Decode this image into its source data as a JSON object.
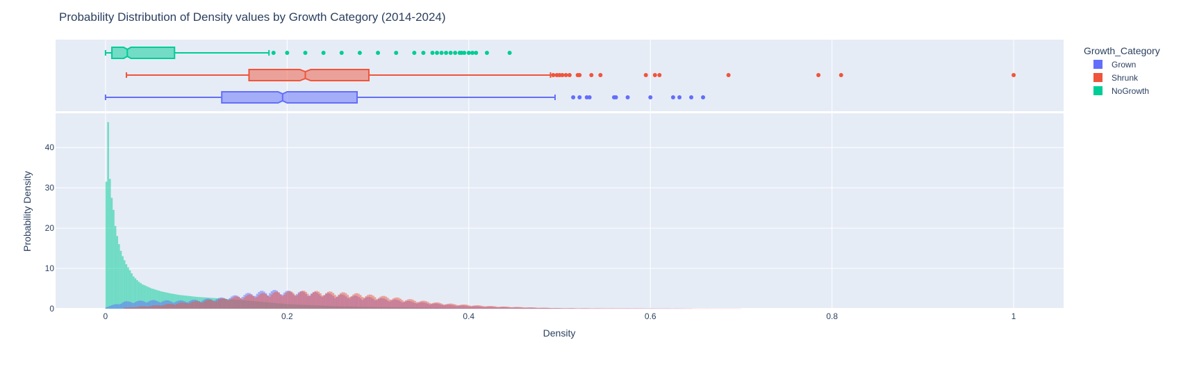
{
  "chart_data": {
    "type": "histogram",
    "title": "Probability Distribution of Density values by Growth Category (2014-2024)",
    "xlabel": "Density",
    "ylabel": "Probability Density",
    "xlim": [
      -0.055,
      1.055
    ],
    "ylim": [
      0,
      48.5
    ],
    "x_ticks": [
      0,
      0.2,
      0.4,
      0.6,
      0.8,
      1
    ],
    "x_tick_labels": [
      "0",
      "0.2",
      "0.4",
      "0.6",
      "0.8",
      "1"
    ],
    "y_ticks": [
      0,
      10,
      20,
      30,
      40
    ],
    "y_tick_labels": [
      "0",
      "10",
      "20",
      "30",
      "40"
    ],
    "grid": true,
    "legend": {
      "title": "Growth_Category",
      "position": "top-right"
    },
    "series": [
      {
        "name": "Grown",
        "color": "#636efa",
        "box": {
          "min": 0.0,
          "q1": 0.128,
          "median": 0.195,
          "q3": 0.277,
          "max": 0.495,
          "notch": [
            0.19,
            0.2
          ]
        },
        "outliers": [
          0.515,
          0.522,
          0.53,
          0.533,
          0.56,
          0.562,
          0.575,
          0.6,
          0.625,
          0.632,
          0.645,
          0.658
        ],
        "histogram_profile": [
          [
            0.0,
            0.3
          ],
          [
            0.02,
            1.5
          ],
          [
            0.05,
            1.8
          ],
          [
            0.08,
            1.7
          ],
          [
            0.1,
            1.9
          ],
          [
            0.13,
            2.4
          ],
          [
            0.16,
            3.4
          ],
          [
            0.18,
            4.0
          ],
          [
            0.2,
            3.8
          ],
          [
            0.23,
            3.5
          ],
          [
            0.26,
            3.0
          ],
          [
            0.3,
            2.3
          ],
          [
            0.34,
            1.5
          ],
          [
            0.38,
            0.8
          ],
          [
            0.42,
            0.4
          ],
          [
            0.46,
            0.2
          ],
          [
            0.5,
            0.1
          ],
          [
            0.56,
            0.05
          ],
          [
            0.62,
            0.03
          ],
          [
            0.66,
            0.0
          ]
        ]
      },
      {
        "name": "Shrunk",
        "color": "#ef553b",
        "box": {
          "min": 0.023,
          "q1": 0.158,
          "median": 0.22,
          "q3": 0.29,
          "max": 0.49,
          "notch": [
            0.214,
            0.226
          ]
        },
        "outliers": [
          0.493,
          0.497,
          0.5,
          0.503,
          0.507,
          0.511,
          0.52,
          0.522,
          0.535,
          0.545,
          0.595,
          0.605,
          0.61,
          0.686,
          0.785,
          0.81,
          1.0
        ],
        "histogram_profile": [
          [
            0.02,
            0.2
          ],
          [
            0.05,
            0.6
          ],
          [
            0.08,
            1.2
          ],
          [
            0.1,
            1.6
          ],
          [
            0.13,
            2.2
          ],
          [
            0.16,
            3.0
          ],
          [
            0.19,
            3.6
          ],
          [
            0.22,
            3.8
          ],
          [
            0.25,
            3.6
          ],
          [
            0.28,
            3.2
          ],
          [
            0.31,
            2.6
          ],
          [
            0.34,
            1.9
          ],
          [
            0.37,
            1.2
          ],
          [
            0.4,
            0.8
          ],
          [
            0.43,
            0.5
          ],
          [
            0.47,
            0.25
          ],
          [
            0.5,
            0.1
          ],
          [
            0.55,
            0.05
          ],
          [
            0.6,
            0.02
          ],
          [
            0.7,
            0.01
          ],
          [
            1.0,
            0.0
          ]
        ]
      },
      {
        "name": "NoGrowth",
        "color": "#00cc96",
        "box": {
          "min": 0.0,
          "q1": 0.007,
          "median": 0.024,
          "q3": 0.076,
          "max": 0.18,
          "notch": [
            0.02,
            0.028
          ]
        },
        "outliers": [
          0.185,
          0.2,
          0.22,
          0.24,
          0.26,
          0.28,
          0.3,
          0.32,
          0.34,
          0.35,
          0.36,
          0.365,
          0.37,
          0.375,
          0.38,
          0.385,
          0.39,
          0.392,
          0.395,
          0.4,
          0.404,
          0.408,
          0.42,
          0.445
        ],
        "histogram_profile": [
          [
            0.0,
            31.5
          ],
          [
            0.002,
            46.3
          ],
          [
            0.004,
            32.2
          ],
          [
            0.006,
            27.5
          ],
          [
            0.008,
            24.5
          ],
          [
            0.01,
            20.5
          ],
          [
            0.012,
            18.0
          ],
          [
            0.015,
            15.0
          ],
          [
            0.018,
            13.0
          ],
          [
            0.022,
            11.0
          ],
          [
            0.026,
            9.5
          ],
          [
            0.03,
            8.0
          ],
          [
            0.035,
            6.8
          ],
          [
            0.04,
            6.0
          ],
          [
            0.05,
            5.0
          ],
          [
            0.06,
            4.3
          ],
          [
            0.07,
            3.8
          ],
          [
            0.08,
            3.4
          ],
          [
            0.1,
            2.9
          ],
          [
            0.12,
            2.6
          ],
          [
            0.15,
            2.1
          ],
          [
            0.2,
            1.1
          ],
          [
            0.25,
            0.6
          ],
          [
            0.3,
            0.35
          ],
          [
            0.35,
            0.2
          ],
          [
            0.4,
            0.1
          ],
          [
            0.45,
            0.05
          ],
          [
            0.5,
            0.0
          ]
        ]
      }
    ]
  }
}
